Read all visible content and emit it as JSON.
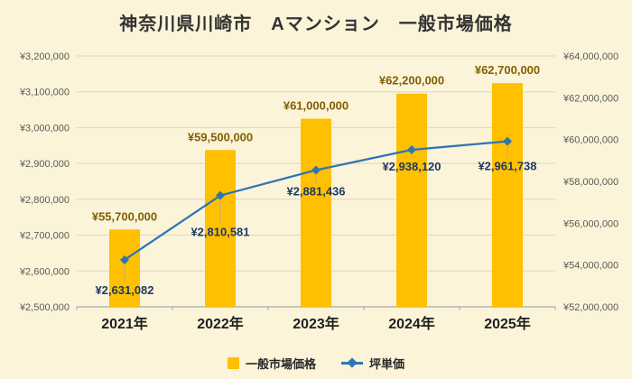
{
  "chart_data": {
    "type": "combo-bar-line",
    "title": "神奈川県川崎市　Aマンション　一般市場価格",
    "categories": [
      "2021年",
      "2022年",
      "2023年",
      "2024年",
      "2025年"
    ],
    "series": [
      {
        "name": "一般市場価格",
        "type": "bar",
        "axis": "right",
        "values": [
          55700000,
          59500000,
          61000000,
          62200000,
          62700000
        ],
        "labels": [
          "¥55,700,000",
          "¥59,500,000",
          "¥61,000,000",
          "¥62,200,000",
          "¥62,700,000"
        ]
      },
      {
        "name": "坪単価",
        "type": "line",
        "axis": "left",
        "values": [
          2631082,
          2810581,
          2881436,
          2938120,
          2961738
        ],
        "labels": [
          "¥2,631,082",
          "¥2,810,581",
          "¥2,881,436",
          "¥2,938,120",
          "¥2,961,738"
        ]
      }
    ],
    "left_axis": {
      "min": 2500000,
      "max": 3200000,
      "step": 100000,
      "tick_labels": [
        "¥3,200,000",
        "¥3,100,000",
        "¥3,000,000",
        "¥2,900,000",
        "¥2,800,000",
        "¥2,700,000",
        "¥2,600,000",
        "¥2,500,000"
      ]
    },
    "right_axis": {
      "min": 52000000,
      "max": 64000000,
      "step": 2000000,
      "tick_labels": [
        "¥64,000,000",
        "¥62,000,000",
        "¥60,000,000",
        "¥58,000,000",
        "¥56,000,000",
        "¥54,000,000",
        "¥52,000,000"
      ]
    },
    "grid": true,
    "legend_position": "bottom"
  },
  "colors": {
    "background": "#FCF4D9",
    "bar": "#FFC000",
    "bar_label": "#7F6000",
    "line": "#2E75B6",
    "line_label": "#1F3864",
    "axis_text": "#595959",
    "grid": "#DBD4BE",
    "axis_line": "#A6A6A6",
    "x_label": "#1F1F1F",
    "title": "#333333"
  }
}
